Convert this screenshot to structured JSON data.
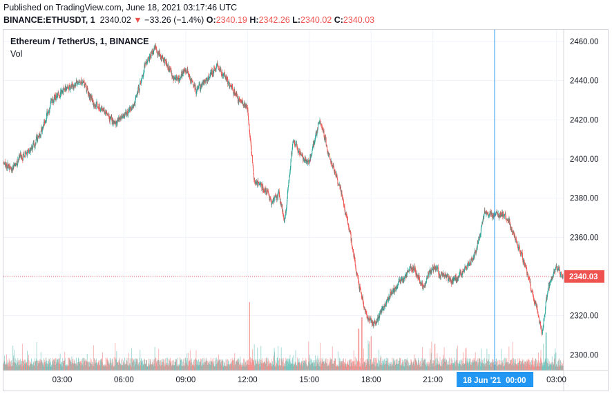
{
  "header": {
    "published_text": "Published on TradingView.com, June 18, 2021 03:17:46 UTC",
    "symbol": "BINANCE:ETHUSDT, 1",
    "last": "2340.02",
    "arrow": "▼",
    "change": "−33.26 (−1.4%)",
    "o_label": "O:",
    "o_value": "2340.19",
    "h_label": "H:",
    "h_value": "2342.26",
    "l_label": "L:",
    "l_value": "2340.02",
    "c_label": "C:",
    "c_value": "2340.03"
  },
  "legend": {
    "title": "Ethereum / TetherUS, 1, BINANCE",
    "volume_label": "Vol"
  },
  "colors": {
    "up": "#26a69a",
    "down": "#ef5350",
    "crosshair": "#2196f3",
    "price_tag": "#ef5350",
    "time_tag": "#2196f3"
  },
  "price_tag": "2340.03",
  "time_tag": {
    "date": "18 Jun '21",
    "time": "00:00"
  },
  "chart_data": {
    "type": "candlestick",
    "symbol": "ETHUSDT",
    "interval": "1",
    "ylim": [
      2292,
      2466
    ],
    "y_ticks": [
      2300,
      2320,
      2340,
      2360,
      2380,
      2400,
      2420,
      2440,
      2460
    ],
    "y_tick_labels": [
      "2300.00",
      "2320.00",
      "2340.00",
      "2360.00",
      "2380.00",
      "2400.00",
      "2420.00",
      "2440.00",
      "2460.00"
    ],
    "x_range_hours": [
      0.15,
      27.35
    ],
    "x_ticks": [
      3,
      6,
      9,
      12,
      15,
      18,
      21,
      27
    ],
    "x_tick_labels": [
      "03:00",
      "06:00",
      "09:00",
      "12:00",
      "15:00",
      "18:00",
      "21:00",
      "03:00"
    ],
    "crosshair_hour": 24,
    "last_price": 2340.03,
    "price_path": [
      [
        0.15,
        2398
      ],
      [
        0.6,
        2395
      ],
      [
        1.0,
        2402
      ],
      [
        1.5,
        2405
      ],
      [
        2.0,
        2415
      ],
      [
        2.5,
        2430
      ],
      [
        3.0,
        2435
      ],
      [
        3.5,
        2438
      ],
      [
        4.0,
        2440
      ],
      [
        4.5,
        2428
      ],
      [
        5.0,
        2425
      ],
      [
        5.5,
        2418
      ],
      [
        6.0,
        2422
      ],
      [
        6.5,
        2428
      ],
      [
        7.0,
        2448
      ],
      [
        7.5,
        2456
      ],
      [
        8.0,
        2450
      ],
      [
        8.5,
        2440
      ],
      [
        9.0,
        2445
      ],
      [
        9.5,
        2435
      ],
      [
        10.0,
        2440
      ],
      [
        10.5,
        2448
      ],
      [
        11.0,
        2440
      ],
      [
        11.5,
        2432
      ],
      [
        12.0,
        2425
      ],
      [
        12.3,
        2390
      ],
      [
        12.8,
        2385
      ],
      [
        13.2,
        2378
      ],
      [
        13.5,
        2383
      ],
      [
        13.8,
        2368
      ],
      [
        14.2,
        2410
      ],
      [
        14.7,
        2400
      ],
      [
        15.0,
        2398
      ],
      [
        15.5,
        2420
      ],
      [
        16.0,
        2400
      ],
      [
        16.5,
        2385
      ],
      [
        17.0,
        2360
      ],
      [
        17.4,
        2335
      ],
      [
        17.8,
        2320
      ],
      [
        18.2,
        2315
      ],
      [
        18.6,
        2325
      ],
      [
        19.0,
        2332
      ],
      [
        19.5,
        2338
      ],
      [
        20.0,
        2345
      ],
      [
        20.5,
        2335
      ],
      [
        21.0,
        2345
      ],
      [
        21.5,
        2340
      ],
      [
        22.0,
        2338
      ],
      [
        22.5,
        2343
      ],
      [
        23.0,
        2350
      ],
      [
        23.5,
        2372
      ],
      [
        24.0,
        2372
      ],
      [
        24.5,
        2372
      ],
      [
        25.0,
        2360
      ],
      [
        25.5,
        2345
      ],
      [
        26.0,
        2325
      ],
      [
        26.3,
        2312
      ],
      [
        26.6,
        2335
      ],
      [
        27.0,
        2345
      ],
      [
        27.35,
        2340
      ]
    ],
    "volume_spikes": [
      {
        "hour": 12.1,
        "relative": 0.9
      },
      {
        "hour": 17.4,
        "relative": 0.55
      },
      {
        "hour": 17.55,
        "relative": 0.7
      },
      {
        "hour": 18.0,
        "relative": 0.45
      },
      {
        "hour": 21.1,
        "relative": 0.35
      },
      {
        "hour": 26.5,
        "relative": 0.5
      }
    ]
  }
}
